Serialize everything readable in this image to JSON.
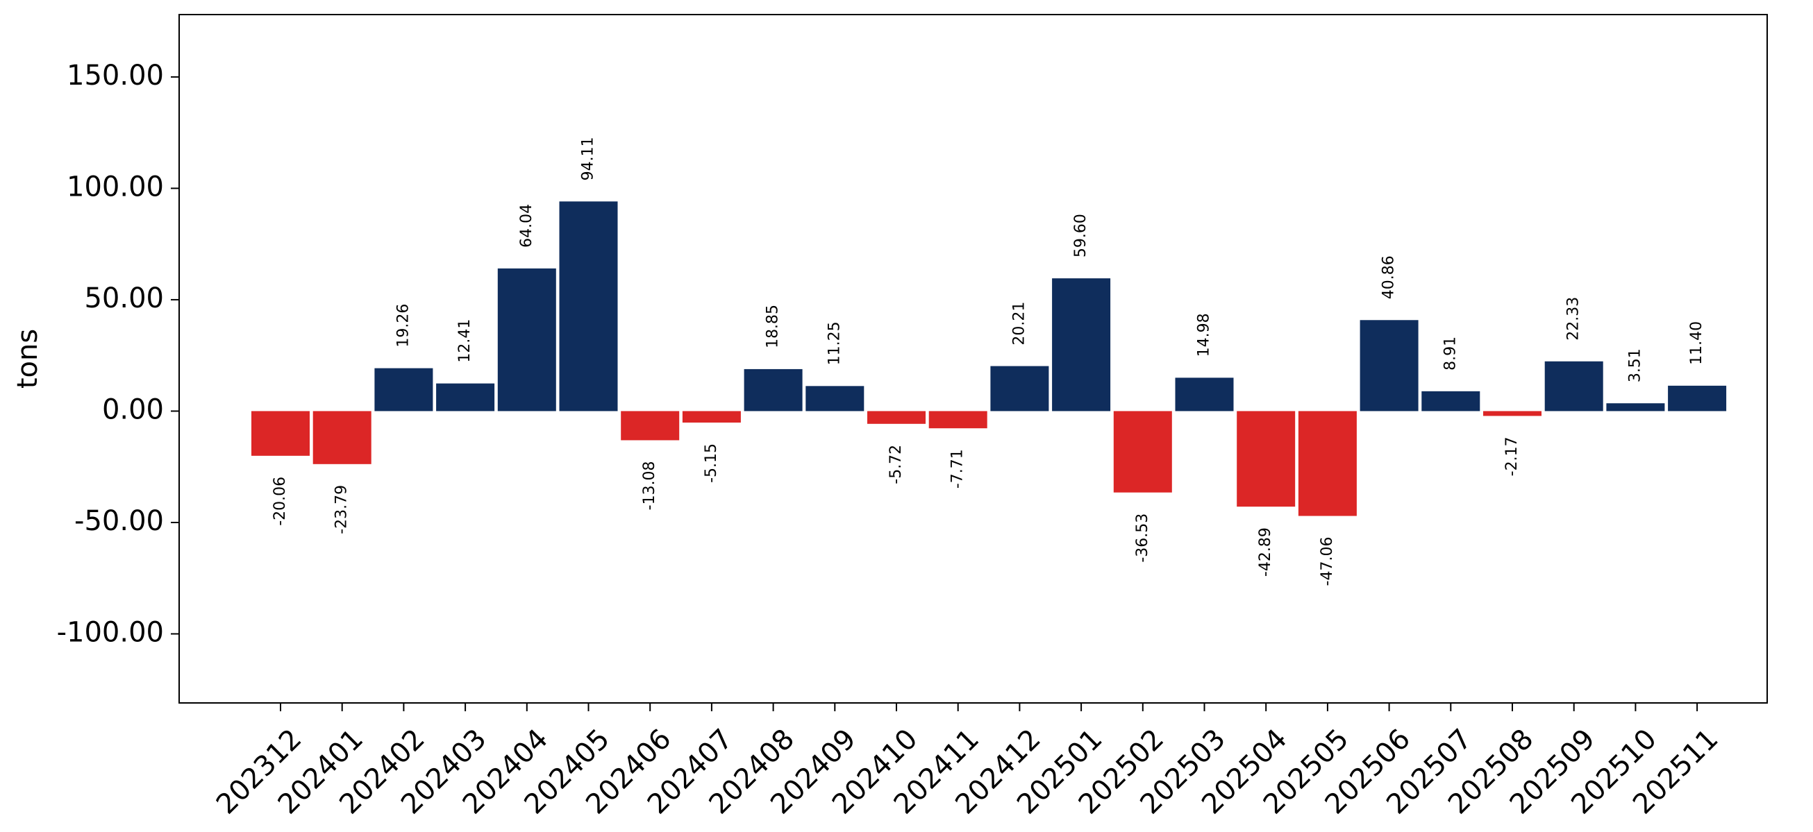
{
  "chart_data": {
    "type": "bar",
    "title": "",
    "xlabel": "",
    "ylabel": "tons",
    "ylim": [
      -131,
      178
    ],
    "yticks": [
      -100,
      -50,
      0,
      50,
      100,
      150
    ],
    "ytick_labels": [
      "-100.00",
      "-50.00",
      "0.00",
      "50.00",
      "100.00",
      "150.00"
    ],
    "grid": false,
    "legend": "none",
    "colors": {
      "positive": "#0f2d5c",
      "negative": "#dc2626"
    },
    "categories": [
      "202312",
      "202401",
      "202402",
      "202403",
      "202404",
      "202405",
      "202406",
      "202407",
      "202408",
      "202409",
      "202410",
      "202411",
      "202412",
      "202501",
      "202502",
      "202503",
      "202504",
      "202505",
      "202506",
      "202507",
      "202508",
      "202509",
      "202510",
      "202511"
    ],
    "values": [
      -20.06,
      -23.79,
      19.26,
      12.41,
      64.04,
      94.11,
      -13.08,
      -5.15,
      18.85,
      11.25,
      -5.72,
      -7.71,
      20.21,
      59.6,
      -36.53,
      14.98,
      -42.89,
      -47.06,
      40.86,
      8.91,
      -2.17,
      22.33,
      3.51,
      11.4
    ],
    "value_labels": [
      "-20.06",
      "-23.79",
      "19.26",
      "12.41",
      "64.04",
      "94.11",
      "-13.08",
      "-5.15",
      "18.85",
      "11.25",
      "-5.72",
      "-7.71",
      "20.21",
      "59.60",
      "-36.53",
      "14.98",
      "-42.89",
      "-47.06",
      "40.86",
      "8.91",
      "-2.17",
      "22.33",
      "3.51",
      "11.40"
    ]
  }
}
